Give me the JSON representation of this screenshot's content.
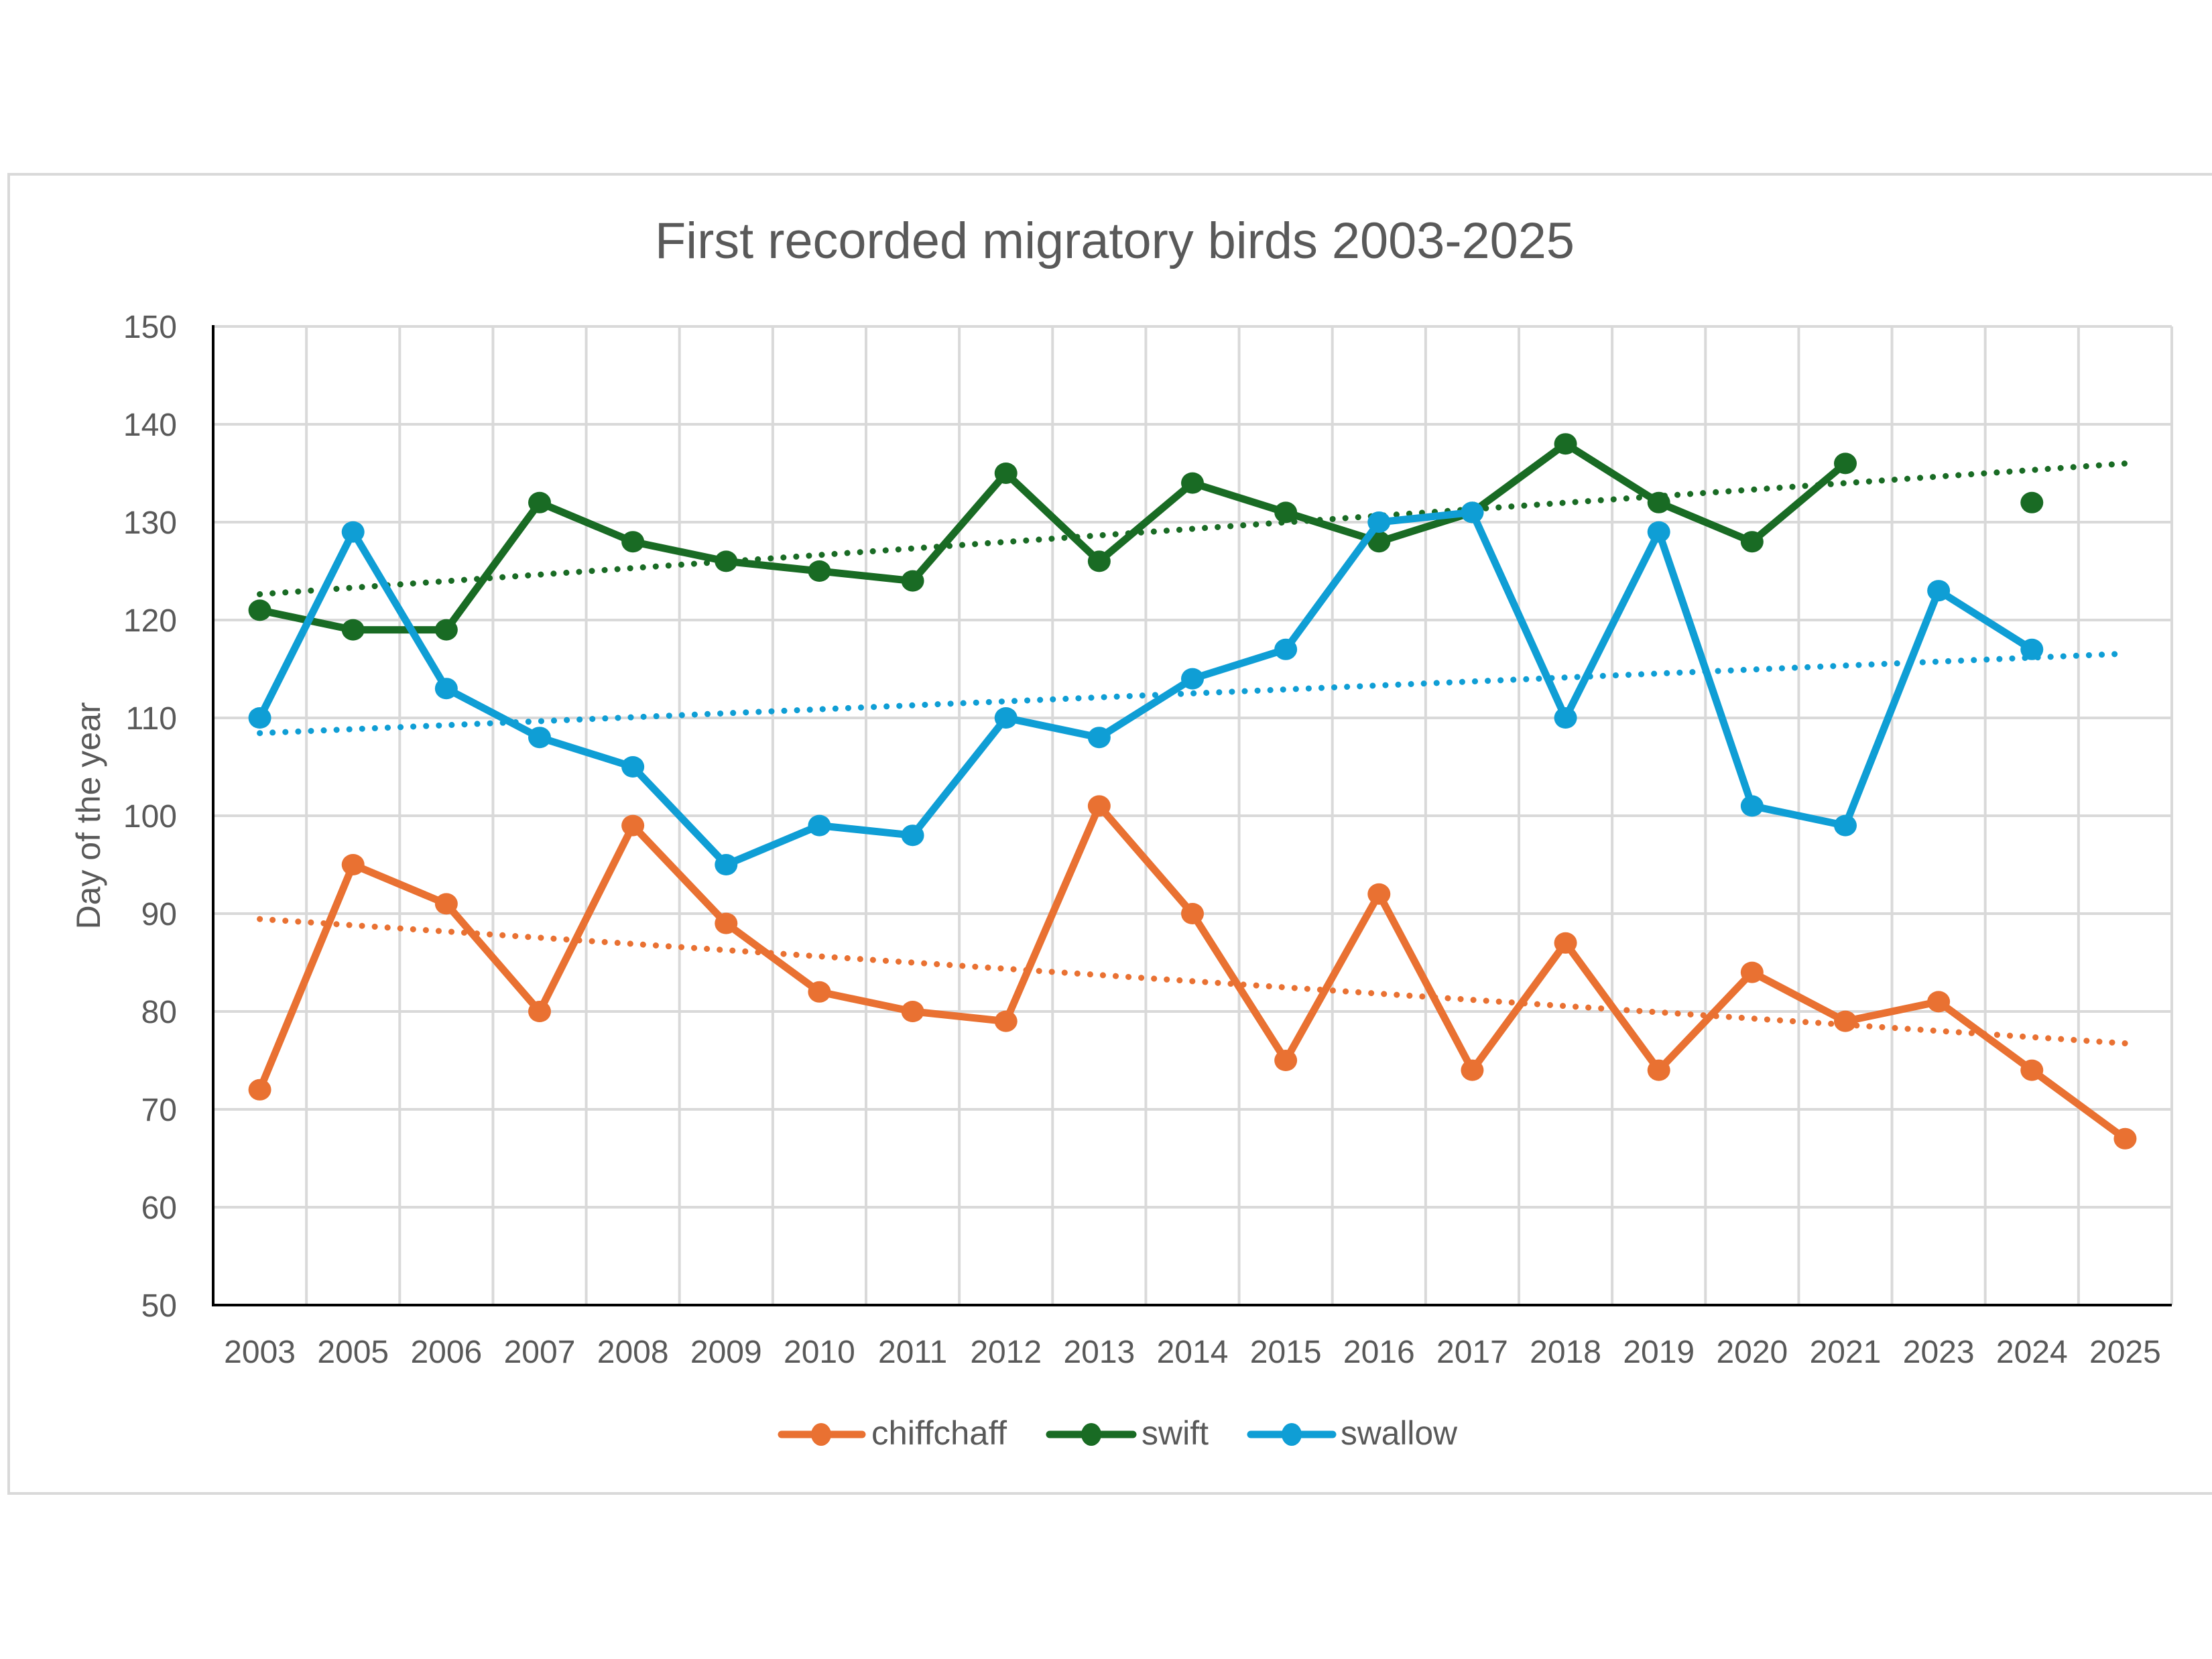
{
  "chart_data": {
    "type": "line",
    "title": "First recorded migratory birds 2003-2025",
    "xlabel": "",
    "ylabel": "Day of the year",
    "ylim": [
      50,
      150
    ],
    "yticks": [
      "50",
      "60",
      "70",
      "80",
      "90",
      "100",
      "110",
      "120",
      "130",
      "140",
      "150"
    ],
    "ytick_values": [
      50,
      60,
      70,
      80,
      90,
      100,
      110,
      120,
      130,
      140,
      150
    ],
    "grid": true,
    "legend_position": "bottom",
    "categories": [
      "2003",
      "2005",
      "2006",
      "2007",
      "2008",
      "2009",
      "2010",
      "2011",
      "2012",
      "2013",
      "2014",
      "2015",
      "2016",
      "2017",
      "2018",
      "2019",
      "2020",
      "2021",
      "2023",
      "2024",
      "2025"
    ],
    "series": [
      {
        "name": "chiffchaff",
        "color": "#E97132",
        "values": [
          72,
          95,
          91,
          80,
          99,
          89,
          82,
          80,
          79,
          101,
          90,
          75,
          92,
          74,
          87,
          74,
          84,
          79,
          81,
          74,
          67
        ],
        "trendline": "linear"
      },
      {
        "name": "swift",
        "color": "#196B24",
        "values": [
          121,
          119,
          119,
          132,
          128,
          126,
          125,
          124,
          135,
          126,
          134,
          131,
          128,
          131,
          138,
          132,
          128,
          136,
          null,
          132,
          null
        ],
        "trendline": "linear"
      },
      {
        "name": "swallow",
        "color": "#0F9ED5",
        "values": [
          110,
          129,
          113,
          108,
          105,
          95,
          99,
          98,
          110,
          108,
          114,
          117,
          130,
          131,
          110,
          129,
          101,
          99,
          123,
          117,
          null
        ],
        "trendline": "linear"
      }
    ]
  }
}
